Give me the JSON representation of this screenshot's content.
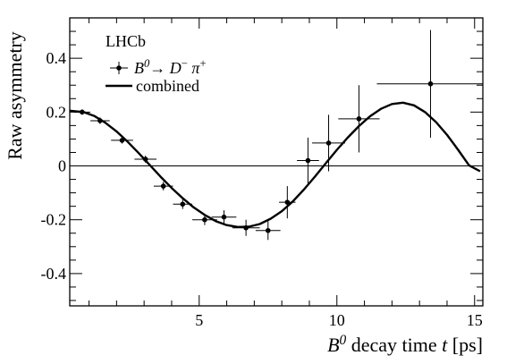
{
  "chart_data": {
    "type": "scatter",
    "title": "",
    "xlabel_parts": [
      {
        "text": "B",
        "style": "italic",
        "sup": false
      },
      {
        "text": "0",
        "style": "italic",
        "sup": true
      },
      {
        "text": " decay time ",
        "style": "normal",
        "sup": false
      },
      {
        "text": "t",
        "style": "italic",
        "sup": false
      },
      {
        "text": " [ps]",
        "style": "normal",
        "sup": false
      }
    ],
    "ylabel": "Raw asymmetry",
    "xlim": [
      0.3,
      15.3
    ],
    "ylim": [
      -0.52,
      0.55
    ],
    "xticks": [
      5,
      10,
      15
    ],
    "xtick_labels": [
      "5",
      "10",
      "15"
    ],
    "yticks": [
      -0.4,
      -0.2,
      0,
      0.2,
      0.4
    ],
    "ytick_labels": [
      "-0.4",
      "-0.2",
      "0",
      "0.2",
      "0.4"
    ],
    "zero_line": true,
    "grid": false,
    "legend": {
      "position": "top-left",
      "header": "LHCb",
      "data_entry_parts": [
        {
          "text": "B",
          "style": "italic",
          "sup": false
        },
        {
          "text": "0",
          "style": "italic",
          "sup": true
        },
        {
          "text": "→",
          "style": "normal",
          "sup": false
        },
        {
          "text": " D",
          "style": "italic",
          "sup": false
        },
        {
          "text": "−",
          "style": "normal",
          "sup": true
        },
        {
          "text": " π",
          "style": "italic",
          "sup": false
        },
        {
          "text": "+",
          "style": "normal",
          "sup": true
        }
      ],
      "fit_entry": "combined"
    },
    "series": [
      {
        "kind": "points_with_errors",
        "points": [
          {
            "x": 0.75,
            "xerr": 0.3,
            "y": 0.2,
            "yerr": 0.01
          },
          {
            "x": 1.4,
            "xerr": 0.35,
            "y": 0.168,
            "yerr": 0.012
          },
          {
            "x": 2.2,
            "xerr": 0.4,
            "y": 0.095,
            "yerr": 0.012
          },
          {
            "x": 3.05,
            "xerr": 0.4,
            "y": 0.025,
            "yerr": 0.013
          },
          {
            "x": 3.7,
            "xerr": 0.35,
            "y": -0.075,
            "yerr": 0.016
          },
          {
            "x": 4.4,
            "xerr": 0.35,
            "y": -0.142,
            "yerr": 0.018
          },
          {
            "x": 5.2,
            "xerr": 0.45,
            "y": -0.2,
            "yerr": 0.02
          },
          {
            "x": 5.9,
            "xerr": 0.45,
            "y": -0.19,
            "yerr": 0.025
          },
          {
            "x": 6.7,
            "xerr": 0.5,
            "y": -0.23,
            "yerr": 0.03
          },
          {
            "x": 7.5,
            "xerr": 0.45,
            "y": -0.24,
            "yerr": 0.035
          },
          {
            "x": 8.2,
            "xerr": 0.3,
            "y": -0.135,
            "yerr": 0.06
          },
          {
            "x": 8.95,
            "xerr": 0.4,
            "y": 0.02,
            "yerr": 0.085
          },
          {
            "x": 9.7,
            "xerr": 0.6,
            "y": 0.085,
            "yerr": 0.105
          },
          {
            "x": 10.8,
            "xerr": 0.75,
            "y": 0.175,
            "yerr": 0.125
          },
          {
            "x": 13.4,
            "xerr": 1.95,
            "y": 0.305,
            "yerr": 0.2
          }
        ]
      },
      {
        "kind": "curve",
        "x": [
          0.3,
          0.8,
          1.2,
          1.6,
          2.0,
          2.4,
          2.8,
          3.2,
          3.6,
          4.0,
          4.4,
          4.8,
          5.2,
          5.6,
          6.0,
          6.4,
          6.8,
          7.2,
          7.6,
          8.0,
          8.4,
          8.8,
          9.2,
          9.6,
          10.0,
          10.4,
          10.8,
          11.2,
          11.6,
          12.0,
          12.4,
          12.8,
          13.2,
          13.6,
          14.0,
          14.4,
          14.8,
          15.2
        ],
        "y": [
          0.205,
          0.2,
          0.185,
          0.16,
          0.128,
          0.09,
          0.048,
          0.004,
          -0.04,
          -0.082,
          -0.12,
          -0.154,
          -0.182,
          -0.205,
          -0.22,
          -0.227,
          -0.226,
          -0.216,
          -0.196,
          -0.168,
          -0.132,
          -0.088,
          -0.04,
          0.01,
          0.06,
          0.106,
          0.148,
          0.184,
          0.212,
          0.23,
          0.235,
          0.225,
          0.2,
          0.163,
          0.115,
          0.06,
          0.002,
          -0.02
        ]
      }
    ],
    "colors": {
      "ink": "#000000",
      "background": "#ffffff"
    }
  }
}
